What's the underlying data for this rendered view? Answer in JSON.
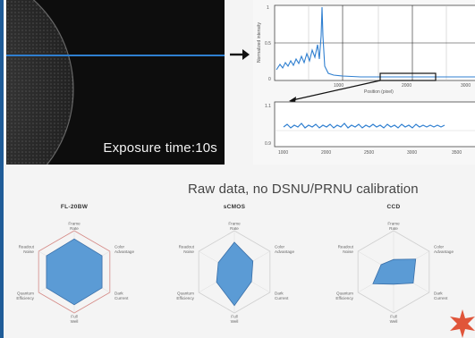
{
  "exposure": {
    "label": "Exposure time:10s"
  },
  "plot": {
    "y_axis_label": "Normalized intensity",
    "x_axis_label": "Position (pixel)",
    "y_ticks": [
      "1",
      "0.5",
      "0"
    ],
    "x_ticks": [
      "1000",
      "2000",
      "3000"
    ],
    "inset_y_ticks": [
      "1.1",
      "0.9"
    ],
    "inset_x_ticks": [
      "1000",
      "2000",
      "2500",
      "3000",
      "3500"
    ]
  },
  "caption": "Raw data, no DSNU/PRNU calibration",
  "radar_charts": [
    {
      "title": "FL-20BW",
      "axes": [
        "Frame Rate",
        "Color Advantage",
        "Dark Current",
        "Full Well",
        "Quantum Efficiency",
        "Readout Noise"
      ],
      "values": [
        0.8,
        0.78,
        0.78,
        0.8,
        0.78,
        0.78
      ]
    },
    {
      "title": "sCMOS",
      "axes": [
        "Frame Rate",
        "Color Advantage",
        "Dark Current",
        "Full Well",
        "Quantum Efficiency",
        "Readout Noise"
      ],
      "values": [
        0.72,
        0.52,
        0.48,
        0.82,
        0.5,
        0.45
      ]
    },
    {
      "title": "CCD",
      "axes": [
        "Frame Rate",
        "Color Advantage",
        "Dark Current",
        "Full Well",
        "Quantum Efficiency",
        "Readout Noise"
      ],
      "values": [
        0.3,
        0.62,
        0.55,
        0.3,
        0.58,
        0.35
      ]
    }
  ],
  "colors": {
    "accent": "#1f5c98",
    "radar_fill": "#5b9bd5",
    "scan_line": "#2f7fd0"
  }
}
